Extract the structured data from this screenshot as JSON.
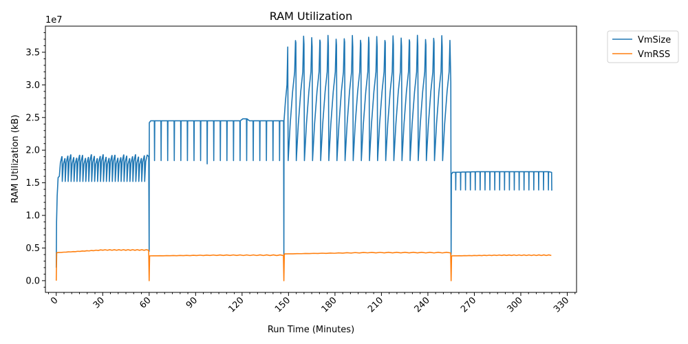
{
  "chart_data": {
    "type": "line",
    "title": "RAM Utilization",
    "xlabel": "Run Time (Minutes)",
    "ylabel": "RAM Utilization (kB)",
    "y_scale_label": "1e7",
    "xlim": [
      -7,
      336
    ],
    "ylim": [
      -0.18,
      3.9
    ],
    "x_ticks": [
      0,
      30,
      60,
      90,
      120,
      150,
      180,
      210,
      240,
      270,
      300,
      330
    ],
    "x_tick_labels": [
      "0",
      "30",
      "60",
      "90",
      "120",
      "150",
      "180",
      "210",
      "240",
      "270",
      "300",
      "330"
    ],
    "y_ticks": [
      0.0,
      0.5,
      1.0,
      1.5,
      2.0,
      2.5,
      3.0,
      3.5
    ],
    "y_tick_labels": [
      "0.0",
      "0.5",
      "1.0",
      "1.5",
      "2.0",
      "2.5",
      "3.0",
      "3.5"
    ],
    "grid": false,
    "legend_position": "outside-top-right",
    "phases": [
      {
        "start": 0,
        "end": 60,
        "vmsize_base": 1.52,
        "vmsize_peak": 1.9,
        "vmsize_cycles": 30,
        "vmrss_start": 0.43,
        "vmrss_end": 0.47
      },
      {
        "start": 60,
        "end": 147,
        "vmsize_base": 2.45,
        "vmsize_trough": 1.84,
        "vmsize_cycles": 20,
        "vmrss_start": 0.38,
        "vmrss_end": 0.39
      },
      {
        "start": 147,
        "end": 255,
        "vmsize_base": 1.84,
        "vmsize_peak": 3.72,
        "vmsize_cycles": 20,
        "vmrss_start": 0.41,
        "vmrss_end": 0.43
      },
      {
        "start": 255,
        "end": 320,
        "vmsize_base": 1.66,
        "vmsize_trough": 1.39,
        "vmsize_cycles": 20,
        "vmrss_start": 0.38,
        "vmrss_end": 0.39
      }
    ],
    "series": [
      {
        "name": "VmSize",
        "color": "#1f77b4"
      },
      {
        "name": "VmRSS",
        "color": "#ff7f0e"
      }
    ]
  }
}
